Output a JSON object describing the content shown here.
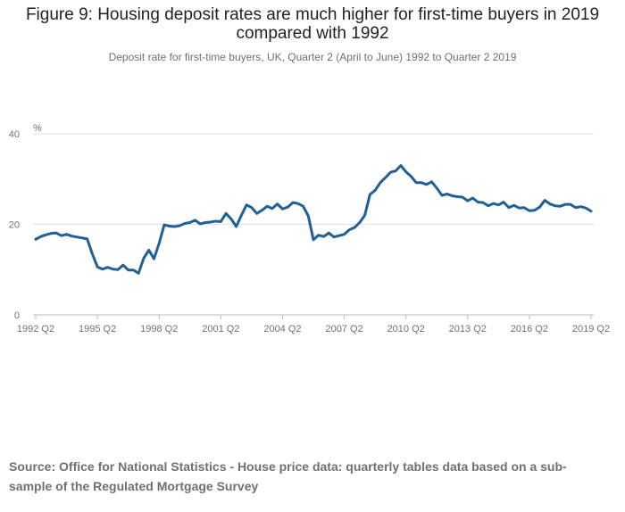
{
  "chart_data": {
    "type": "line",
    "title": "Figure 9: Housing deposit rates are much higher for first-time buyers in 2019 compared with 1992",
    "subtitle": "Deposit rate for first-time buyers, UK, Quarter 2 (April to June) 1992 to Quarter 2 2019",
    "ylabel": "%",
    "xlabel": "",
    "ylim": [
      0,
      40
    ],
    "yticks": [
      0,
      20,
      40
    ],
    "xticks": [
      "1992 Q2",
      "1995 Q2",
      "1998 Q2",
      "2001 Q2",
      "2004 Q2",
      "2007 Q2",
      "2010 Q2",
      "2013 Q2",
      "2016 Q2",
      "2019 Q2"
    ],
    "xtick_index": [
      0,
      12,
      24,
      36,
      48,
      60,
      72,
      84,
      96,
      108
    ],
    "grid": true,
    "line_color": "#206095",
    "series": [
      {
        "values": [
          16.7,
          17.3,
          17.7,
          18.0,
          18.1,
          17.5,
          17.8,
          17.4,
          17.2,
          17.0,
          16.8,
          13.5,
          10.6,
          10.1,
          10.5,
          10.1,
          10.0,
          11.0,
          9.9,
          9.9,
          9.2,
          12.5,
          14.3,
          12.4,
          15.8,
          19.9,
          19.6,
          19.5,
          19.7,
          20.2,
          20.4,
          20.9,
          20.1,
          20.4,
          20.5,
          20.7,
          20.6,
          22.4,
          21.2,
          19.5,
          22.0,
          24.3,
          23.7,
          22.4,
          23.1,
          24.0,
          23.5,
          24.5,
          23.4,
          23.8,
          24.8,
          24.6,
          24.0,
          21.9,
          16.6,
          17.6,
          17.3,
          18.1,
          17.2,
          17.5,
          17.8,
          18.8,
          19.3,
          20.4,
          22.0,
          26.6,
          27.5,
          29.2,
          30.3,
          31.5,
          31.8,
          33.0,
          31.6,
          30.6,
          29.2,
          29.2,
          28.8,
          29.4,
          28.0,
          26.4,
          26.7,
          26.3,
          26.1,
          26.0,
          25.2,
          25.8,
          24.9,
          24.8,
          24.1,
          24.6,
          24.3,
          24.9,
          23.7,
          24.2,
          23.6,
          23.7,
          23.0,
          23.1,
          23.8,
          25.3,
          24.5,
          24.1,
          24.0,
          24.4,
          24.4,
          23.7,
          23.9,
          23.6,
          22.9
        ]
      }
    ]
  },
  "source": "Source: Office for National Statistics - House price data: quarterly tables data based on a sub-sample of the Regulated Mortgage Survey"
}
